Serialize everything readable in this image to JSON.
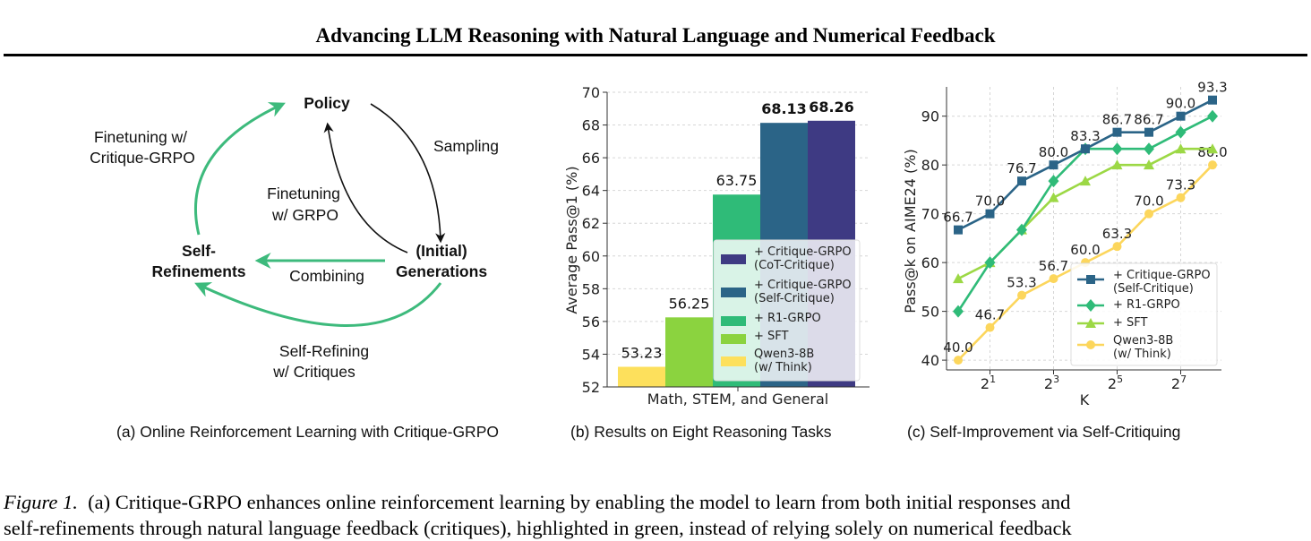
{
  "header": {
    "title": "Advancing LLM Reasoning with Natural Language and Numerical Feedback"
  },
  "diagram": {
    "policy": "Policy",
    "sampling": "Sampling",
    "finetuning_grpo": [
      "Finetuning",
      "w/ GRPO"
    ],
    "finetuning_critique": [
      "Finetuning w/",
      "Critique-GRPO"
    ],
    "generations": [
      "(Initial)",
      "Generations"
    ],
    "self_refinements": [
      "Self-",
      "Refinements"
    ],
    "combining": "Combining",
    "self_refining": [
      "Self-Refining",
      "w/ Critiques"
    ]
  },
  "subcaptions": {
    "a": "(a) Online Reinforcement Learning with Critique-GRPO",
    "b": "(b) Results on Eight Reasoning Tasks",
    "c": "(c) Self-Improvement via Self-Critiquing"
  },
  "caption": {
    "figure_label": "Figure 1.",
    "line1": "(a) Critique-GRPO enhances online reinforcement learning by enabling the model to learn from both initial responses and",
    "line2": "self-refinements through natural language feedback (critiques), highlighted in green, instead of relying solely on numerical feedback"
  },
  "chart_data": [
    {
      "type": "bar",
      "categories": [
        "Math, STEM, and General"
      ],
      "xlabel": "Math, STEM, and General",
      "ylabel": "Average Pass@1 (%)",
      "ylim": [
        52,
        70
      ],
      "yticks": [
        52,
        54,
        56,
        58,
        60,
        62,
        64,
        66,
        68,
        70
      ],
      "grid": true,
      "legend_position": "lower-right",
      "series": [
        {
          "name": "Qwen3-8B\n(w/ Think)",
          "values": [
            53.23
          ],
          "label": "53.23",
          "color": "#fde05c",
          "bold": false
        },
        {
          "name": "+ SFT",
          "values": [
            56.25
          ],
          "label": "56.25",
          "color": "#8bd33f",
          "bold": false
        },
        {
          "name": "+ R1-GRPO",
          "values": [
            63.75
          ],
          "label": "63.75",
          "color": "#2fbb78",
          "bold": false
        },
        {
          "name": "+ Critique-GRPO\n(Self-Critique)",
          "values": [
            68.13
          ],
          "label": "68.13",
          "color": "#2b6487",
          "bold": true
        },
        {
          "name": "+ Critique-GRPO\n(CoT-Critique)",
          "values": [
            68.26
          ],
          "label": "68.26",
          "color": "#3e3a83",
          "bold": true
        }
      ],
      "legend_order": [
        4,
        3,
        2,
        1,
        0
      ]
    },
    {
      "type": "line",
      "xlabel": "K",
      "ylabel": "Pass@k on AIME24 (%)",
      "x": [
        1,
        2,
        4,
        8,
        16,
        32,
        64,
        128,
        256
      ],
      "x_scale": "log2",
      "xticks": [
        {
          "value": 2,
          "base": "2",
          "exp": "1"
        },
        {
          "value": 8,
          "base": "2",
          "exp": "3"
        },
        {
          "value": 32,
          "base": "2",
          "exp": "5"
        },
        {
          "value": 128,
          "base": "2",
          "exp": "7"
        }
      ],
      "ylim": [
        38,
        96
      ],
      "yticks": [
        40,
        50,
        60,
        70,
        80,
        90
      ],
      "grid": true,
      "legend_position": "lower-right",
      "series": [
        {
          "name": "+ Critique-GRPO\n(Self-Critique)",
          "marker": "square",
          "color": "#2b6487",
          "values": [
            66.7,
            70.0,
            76.7,
            80.0,
            83.3,
            86.7,
            86.7,
            90.0,
            93.3
          ],
          "labels": [
            "66.7",
            "70.0",
            "76.7",
            "80.0",
            "83.3",
            "86.7",
            "86.7",
            "90.0",
            "93.3"
          ]
        },
        {
          "name": "+ R1-GRPO",
          "marker": "diamond",
          "color": "#2fbb78",
          "values": [
            50.0,
            60.0,
            66.7,
            76.7,
            83.3,
            83.3,
            83.3,
            86.7,
            90.0
          ]
        },
        {
          "name": "+ SFT",
          "marker": "triangle",
          "color": "#9cd845",
          "values": [
            56.7,
            60.0,
            66.7,
            73.3,
            76.7,
            80.0,
            80.0,
            83.3,
            83.3
          ]
        },
        {
          "name": "Qwen3-8B\n(w/ Think)",
          "marker": "circle",
          "color": "#fcd65c",
          "values": [
            40.0,
            46.7,
            53.3,
            56.7,
            60.0,
            63.3,
            70.0,
            73.3,
            80.0
          ],
          "labels": [
            "40.0",
            "46.7",
            "53.3",
            "56.7",
            "60.0",
            "63.3",
            "70.0",
            "73.3",
            "80.0"
          ]
        }
      ]
    }
  ]
}
